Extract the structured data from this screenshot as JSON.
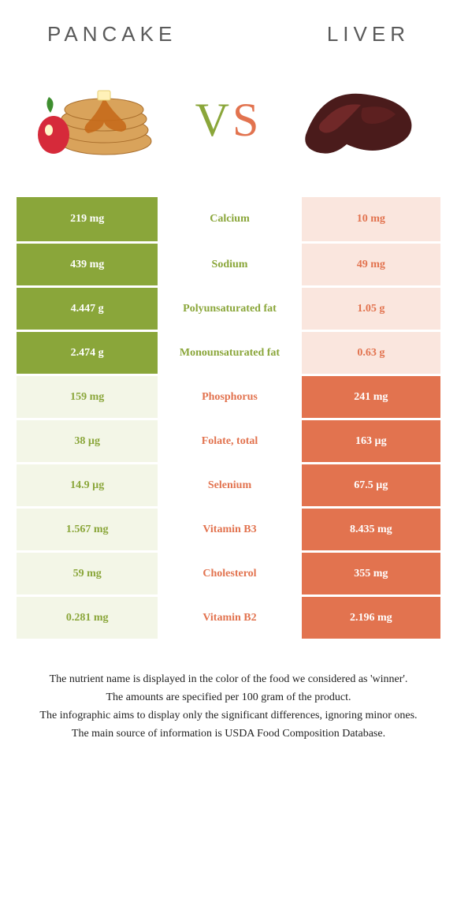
{
  "titles": {
    "left": "PANCAKE",
    "right": "LIVER"
  },
  "vs": {
    "v": "V",
    "s": "S"
  },
  "colors": {
    "green": "#8aa63a",
    "orange": "#e2734f",
    "greenLight": "#f3f6e7",
    "orangeLight": "#fae6de"
  },
  "rows": [
    {
      "left": "219 mg",
      "label": "Calcium",
      "right": "10 mg",
      "winner": "left"
    },
    {
      "left": "439 mg",
      "label": "Sodium",
      "right": "49 mg",
      "winner": "left"
    },
    {
      "left": "4.447 g",
      "label": "Polyunsaturated fat",
      "right": "1.05 g",
      "winner": "left"
    },
    {
      "left": "2.474 g",
      "label": "Monounsaturated fat",
      "right": "0.63 g",
      "winner": "left"
    },
    {
      "left": "159 mg",
      "label": "Phosphorus",
      "right": "241 mg",
      "winner": "right"
    },
    {
      "left": "38 µg",
      "label": "Folate, total",
      "right": "163 µg",
      "winner": "right"
    },
    {
      "left": "14.9 µg",
      "label": "Selenium",
      "right": "67.5 µg",
      "winner": "right"
    },
    {
      "left": "1.567 mg",
      "label": "Vitamin B3",
      "right": "8.435 mg",
      "winner": "right"
    },
    {
      "left": "59 mg",
      "label": "Cholesterol",
      "right": "355 mg",
      "winner": "right"
    },
    {
      "left": "0.281 mg",
      "label": "Vitamin B2",
      "right": "2.196 mg",
      "winner": "right"
    }
  ],
  "notes": [
    "The nutrient name is displayed in the color of the food we considered as 'winner'.",
    "The amounts are specified per 100 gram of the product.",
    "The infographic aims to display only the significant differences, ignoring minor ones.",
    "The main source of information is USDA Food Composition Database."
  ]
}
